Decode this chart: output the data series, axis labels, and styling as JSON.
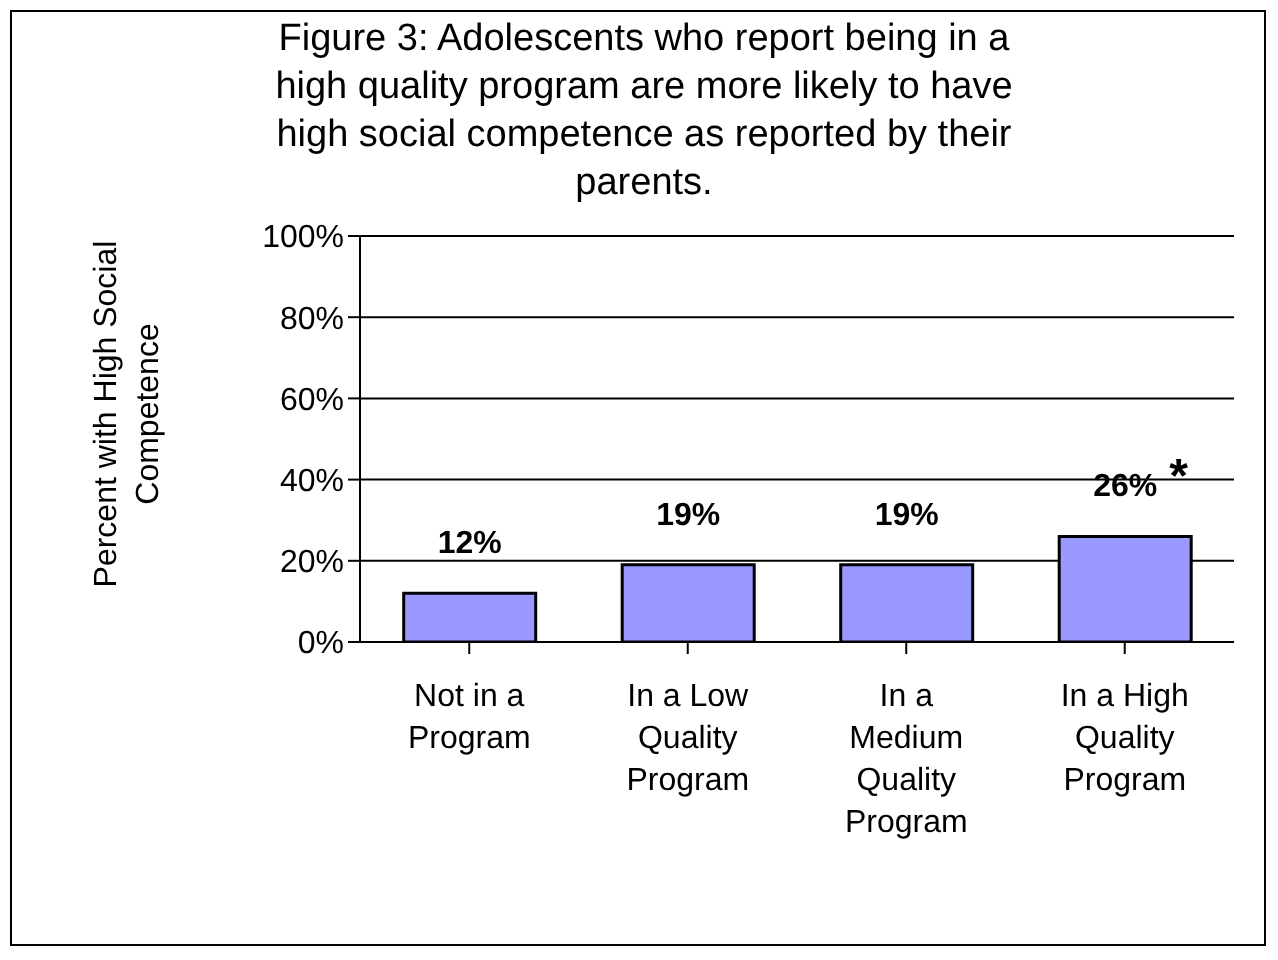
{
  "chart_data": {
    "type": "bar",
    "title": "Figure 3: Adolescents who report being in a high quality program are more likely to have high social competence as reported by their parents.",
    "ylabel": "Percent with High Social Competence",
    "categories": [
      "Not in a Program",
      "In a Low Quality Program",
      "In a Medium Quality Program",
      "In a High Quality Program"
    ],
    "values": [
      12,
      19,
      19,
      26
    ],
    "color": "#9999ff",
    "value_labels": [
      "12%",
      "19%",
      "19%",
      "26%"
    ],
    "annotations": [
      {
        "text": "*",
        "x": "In a High Quality Program",
        "y": 26
      }
    ],
    "ylim": [
      0,
      100
    ],
    "yticks": [
      {
        "value": 0,
        "label": "0%"
      },
      {
        "value": 20,
        "label": "20%"
      },
      {
        "value": 40,
        "label": "40%"
      },
      {
        "value": 60,
        "label": "60%"
      },
      {
        "value": 80,
        "label": "80%"
      },
      {
        "value": 100,
        "label": "100%"
      }
    ],
    "grid": "y"
  }
}
